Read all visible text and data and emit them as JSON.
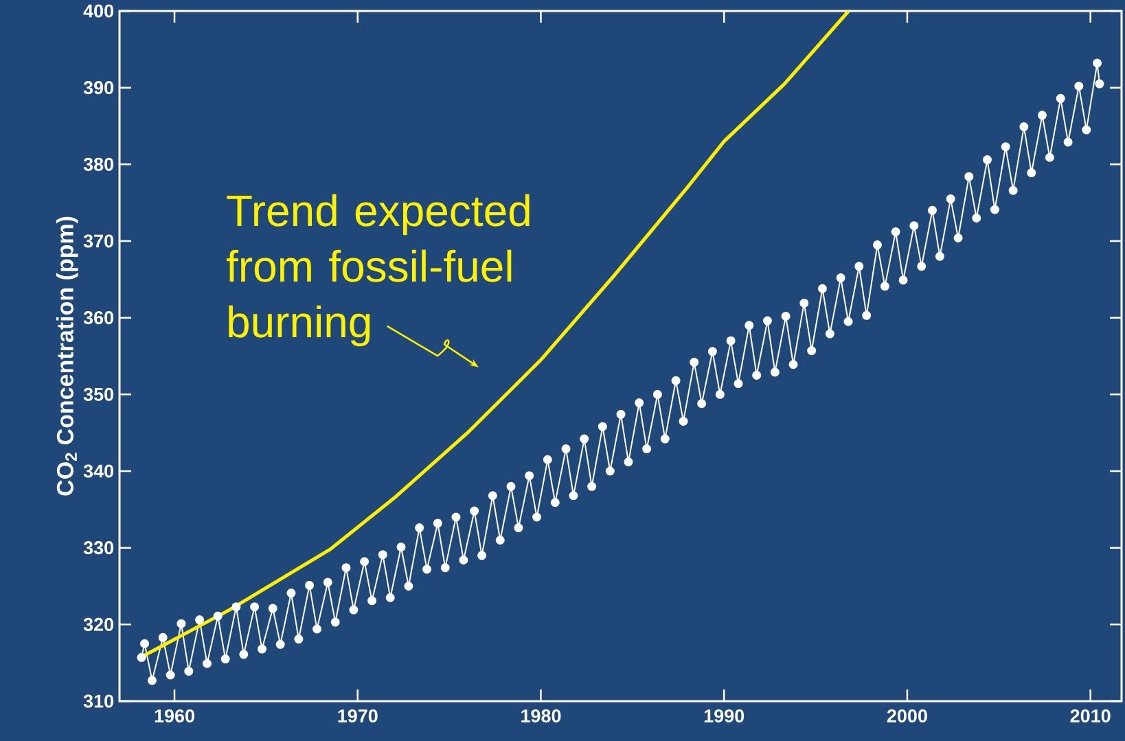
{
  "chart_data": {
    "type": "line",
    "ylabel": "CO$_{2}$ Concentration (ppm)",
    "xlim": [
      1957,
      2011.7
    ],
    "ylim": [
      310,
      400
    ],
    "xticks": [
      1960,
      1970,
      1980,
      1990,
      2000,
      2010
    ],
    "yticks": [
      310,
      320,
      330,
      340,
      350,
      360,
      370,
      380,
      390,
      400
    ],
    "marker": "circle",
    "line_style": "solid",
    "annotations": [
      "Trend expected from fossil-fuel burning"
    ],
    "series": [
      {
        "type": "line",
        "color": "#ffffff",
        "x": [
          1958.2,
          1958.37,
          1958.78,
          1959.37,
          1959.78,
          1960.37,
          1960.78,
          1961.37,
          1961.78,
          1962.37,
          1962.78,
          1963.37,
          1963.78,
          1964.37,
          1964.78,
          1965.37,
          1965.78,
          1966.37,
          1966.78,
          1967.37,
          1967.78,
          1968.37,
          1968.78,
          1969.37,
          1969.78,
          1970.37,
          1970.78,
          1971.37,
          1971.78,
          1972.37,
          1972.78,
          1973.37,
          1973.78,
          1974.37,
          1974.78,
          1975.37,
          1975.78,
          1976.37,
          1976.78,
          1977.37,
          1977.78,
          1978.37,
          1978.78,
          1979.37,
          1979.78,
          1980.37,
          1980.78,
          1981.37,
          1981.78,
          1982.37,
          1982.78,
          1983.37,
          1983.78,
          1984.37,
          1984.78,
          1985.37,
          1985.78,
          1986.37,
          1986.78,
          1987.37,
          1987.78,
          1988.37,
          1988.78,
          1989.37,
          1989.78,
          1990.37,
          1990.78,
          1991.37,
          1991.78,
          1992.37,
          1992.78,
          1993.37,
          1993.78,
          1994.37,
          1994.78,
          1995.37,
          1995.78,
          1996.37,
          1996.78,
          1997.37,
          1997.78,
          1998.37,
          1998.78,
          1999.37,
          1999.78,
          2000.37,
          2000.78,
          2001.37,
          2001.78,
          2002.37,
          2002.78,
          2003.37,
          2003.78,
          2004.37,
          2004.78,
          2005.37,
          2005.78,
          2006.37,
          2006.78,
          2007.37,
          2007.78,
          2008.37,
          2008.78,
          2009.37,
          2009.78,
          2010.37,
          2010.5
        ],
        "values": [
          315.7,
          317.5,
          312.7,
          318.3,
          313.4,
          320.1,
          313.9,
          320.6,
          314.9,
          321.1,
          315.5,
          322.3,
          316.1,
          322.3,
          316.8,
          322.1,
          317.4,
          324.1,
          318.1,
          325.1,
          319.4,
          325.5,
          320.3,
          327.4,
          321.9,
          328.2,
          323.1,
          329.1,
          323.5,
          330.1,
          325.0,
          332.6,
          327.2,
          333.2,
          327.4,
          334.0,
          328.4,
          334.8,
          329.0,
          336.8,
          331.0,
          338.0,
          332.6,
          339.4,
          334.0,
          341.5,
          335.9,
          342.9,
          336.8,
          344.2,
          338.0,
          345.8,
          340.0,
          347.4,
          341.2,
          348.9,
          342.9,
          350.0,
          344.2,
          351.8,
          346.5,
          354.2,
          348.8,
          355.6,
          350.0,
          357.0,
          351.4,
          359.0,
          352.5,
          359.6,
          352.9,
          360.2,
          353.9,
          361.9,
          355.7,
          363.8,
          357.9,
          365.2,
          359.5,
          366.7,
          360.3,
          369.5,
          364.1,
          371.2,
          364.9,
          372.0,
          366.7,
          374.0,
          368.0,
          375.5,
          370.4,
          378.4,
          373.0,
          380.6,
          374.1,
          382.3,
          376.6,
          384.9,
          378.9,
          386.4,
          380.9,
          388.6,
          382.9,
          390.2,
          384.5,
          393.2,
          390.5
        ]
      },
      {
        "type": "line",
        "color": "#ffee00",
        "marker": "none",
        "x": [
          1958.0,
          1963.0,
          1968.5,
          1972.0,
          1976.0,
          1980.0,
          1984.0,
          1988.0,
          1990.0,
          1993.3,
          1996.8
        ],
        "values": [
          315.5,
          321.9,
          329.8,
          336.5,
          345.0,
          354.5,
          365.5,
          377.0,
          383.0,
          390.5,
          400.0
        ]
      }
    ]
  }
}
